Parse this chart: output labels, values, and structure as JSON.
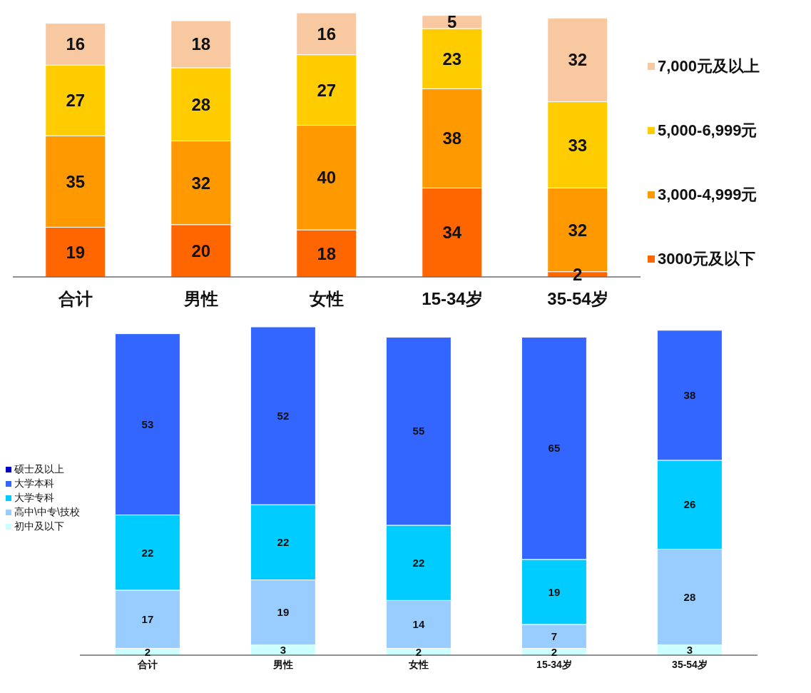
{
  "chart_data": [
    {
      "type": "bar",
      "stacked": true,
      "data_labels": true,
      "legend": "right",
      "categories": [
        "合计",
        "男性",
        "女性",
        "15-34岁",
        "35-54岁"
      ],
      "series": [
        {
          "name": "3000元及以下",
          "color": "#ff6600",
          "values": [
            19,
            20,
            18,
            34,
            2
          ]
        },
        {
          "name": "3,000-4,999元",
          "color": "#ff9900",
          "values": [
            35,
            32,
            40,
            38,
            32
          ]
        },
        {
          "name": "5,000-6,999元",
          "color": "#ffcc00",
          "values": [
            27,
            28,
            27,
            23,
            33
          ]
        },
        {
          "name": "7,000元及以上",
          "color": "#f8c8a0",
          "values": [
            16,
            18,
            16,
            5,
            32
          ]
        }
      ]
    },
    {
      "type": "bar",
      "stacked": true,
      "data_labels": true,
      "legend": "left",
      "categories": [
        "合计",
        "男性",
        "女性",
        "15-34岁",
        "35-54岁"
      ],
      "series": [
        {
          "name": "初中及以下",
          "color": "#ccffff",
          "values": [
            2,
            3,
            2,
            2,
            3
          ]
        },
        {
          "name": "高中\\中专\\技校",
          "color": "#99ccff",
          "values": [
            17,
            19,
            14,
            7,
            28
          ]
        },
        {
          "name": "大学专科",
          "color": "#00ccff",
          "values": [
            22,
            22,
            22,
            19,
            26
          ]
        },
        {
          "name": "大学本科",
          "color": "#3366ff",
          "values": [
            53,
            52,
            55,
            65,
            38
          ]
        },
        {
          "name": "硕士及以上",
          "color": "#0000cc",
          "values": [
            null,
            null,
            null,
            null,
            null
          ]
        }
      ]
    }
  ]
}
